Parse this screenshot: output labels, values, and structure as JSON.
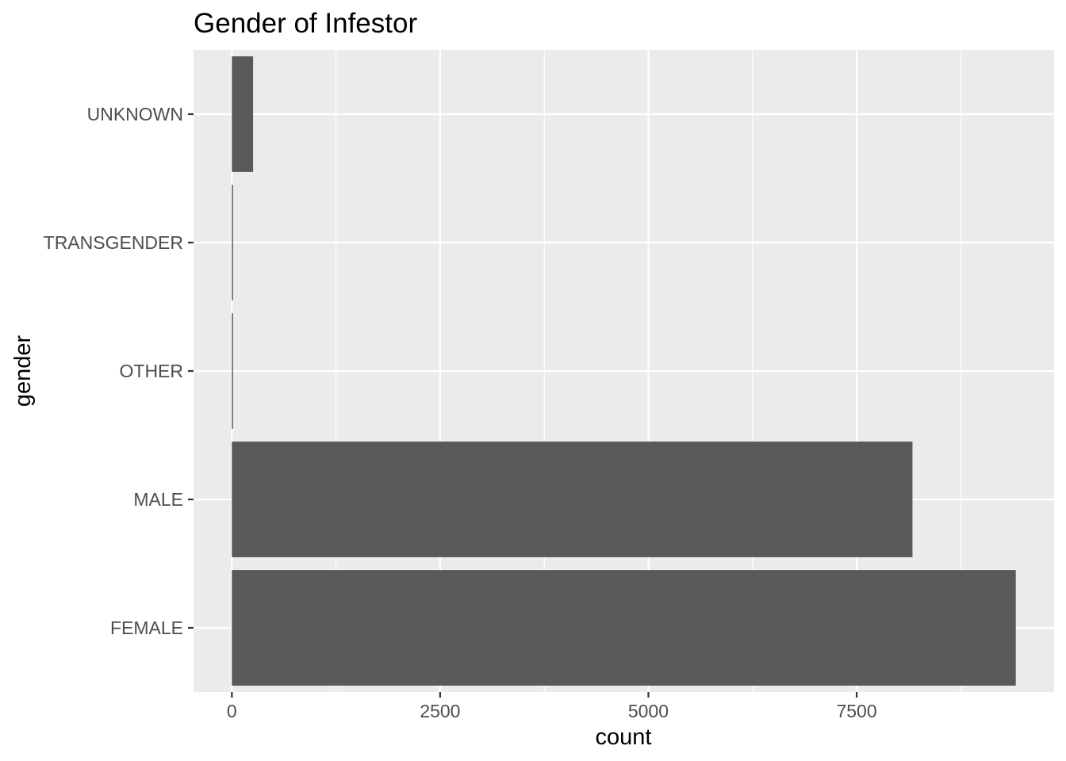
{
  "chart_data": {
    "type": "bar",
    "orientation": "horizontal",
    "title": "Gender of Infestor",
    "xlabel": "count",
    "ylabel": "gender",
    "categories": [
      "FEMALE",
      "MALE",
      "OTHER",
      "TRANSGENDER",
      "UNKNOWN"
    ],
    "values": [
      9410,
      8170,
      8,
      12,
      255
    ],
    "xlim": [
      -460,
      9870
    ],
    "x_ticks": [
      0,
      2500,
      5000,
      7500
    ],
    "x_tick_labels": [
      "0",
      "2500",
      "5000",
      "7500"
    ],
    "grid": true,
    "colors": {
      "bar": "#595959",
      "panel": "#ebebeb",
      "grid": "#ffffff"
    }
  }
}
